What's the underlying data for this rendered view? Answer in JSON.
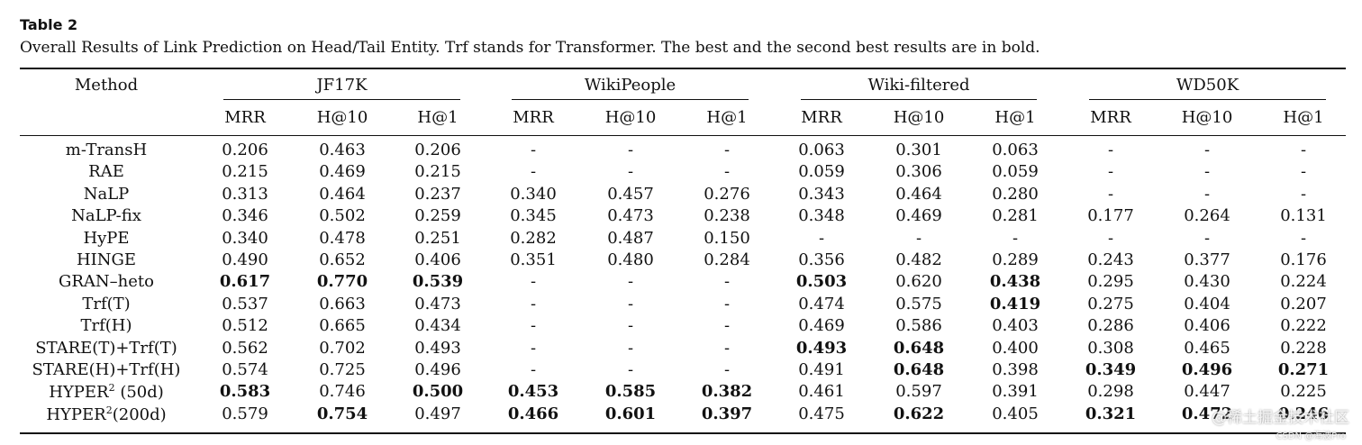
{
  "caption": {
    "label": "Table 2",
    "text": "Overall Results of Link Prediction on Head/Tail Entity. Trf stands for Transformer. The best and the second best results are in bold."
  },
  "table": {
    "method_header": "Method",
    "groups": [
      "JF17K",
      "WikiPeople",
      "Wiki-filtered",
      "WD50K"
    ],
    "metrics": [
      "MRR",
      "H@10",
      "H@1"
    ],
    "rows": [
      {
        "method": "m-TransH",
        "cells": [
          [
            "0.206",
            0
          ],
          [
            "0.463",
            0
          ],
          [
            "0.206",
            0
          ],
          [
            "-",
            0
          ],
          [
            "-",
            0
          ],
          [
            "-",
            0
          ],
          [
            "0.063",
            0
          ],
          [
            "0.301",
            0
          ],
          [
            "0.063",
            0
          ],
          [
            "-",
            0
          ],
          [
            "-",
            0
          ],
          [
            "-",
            0
          ]
        ]
      },
      {
        "method": "RAE",
        "cells": [
          [
            "0.215",
            0
          ],
          [
            "0.469",
            0
          ],
          [
            "0.215",
            0
          ],
          [
            "-",
            0
          ],
          [
            "-",
            0
          ],
          [
            "-",
            0
          ],
          [
            "0.059",
            0
          ],
          [
            "0.306",
            0
          ],
          [
            "0.059",
            0
          ],
          [
            "-",
            0
          ],
          [
            "-",
            0
          ],
          [
            "-",
            0
          ]
        ]
      },
      {
        "method": "NaLP",
        "cells": [
          [
            "0.313",
            0
          ],
          [
            "0.464",
            0
          ],
          [
            "0.237",
            0
          ],
          [
            "0.340",
            0
          ],
          [
            "0.457",
            0
          ],
          [
            "0.276",
            0
          ],
          [
            "0.343",
            0
          ],
          [
            "0.464",
            0
          ],
          [
            "0.280",
            0
          ],
          [
            "-",
            0
          ],
          [
            "-",
            0
          ],
          [
            "-",
            0
          ]
        ]
      },
      {
        "method": "NaLP-fix",
        "cells": [
          [
            "0.346",
            0
          ],
          [
            "0.502",
            0
          ],
          [
            "0.259",
            0
          ],
          [
            "0.345",
            0
          ],
          [
            "0.473",
            0
          ],
          [
            "0.238",
            0
          ],
          [
            "0.348",
            0
          ],
          [
            "0.469",
            0
          ],
          [
            "0.281",
            0
          ],
          [
            "0.177",
            0
          ],
          [
            "0.264",
            0
          ],
          [
            "0.131",
            0
          ]
        ]
      },
      {
        "method": "HyPE",
        "cells": [
          [
            "0.340",
            0
          ],
          [
            "0.478",
            0
          ],
          [
            "0.251",
            0
          ],
          [
            "0.282",
            0
          ],
          [
            "0.487",
            0
          ],
          [
            "0.150",
            0
          ],
          [
            "-",
            0
          ],
          [
            "-",
            0
          ],
          [
            "-",
            0
          ],
          [
            "-",
            0
          ],
          [
            "-",
            0
          ],
          [
            "-",
            0
          ]
        ]
      },
      {
        "method": "HINGE",
        "cells": [
          [
            "0.490",
            0
          ],
          [
            "0.652",
            0
          ],
          [
            "0.406",
            0
          ],
          [
            "0.351",
            0
          ],
          [
            "0.480",
            0
          ],
          [
            "0.284",
            0
          ],
          [
            "0.356",
            0
          ],
          [
            "0.482",
            0
          ],
          [
            "0.289",
            0
          ],
          [
            "0.243",
            0
          ],
          [
            "0.377",
            0
          ],
          [
            "0.176",
            0
          ]
        ]
      },
      {
        "method": "GRAN–heto",
        "cells": [
          [
            "0.617",
            1
          ],
          [
            "0.770",
            1
          ],
          [
            "0.539",
            1
          ],
          [
            "-",
            0
          ],
          [
            "-",
            0
          ],
          [
            "-",
            0
          ],
          [
            "0.503",
            1
          ],
          [
            "0.620",
            0
          ],
          [
            "0.438",
            1
          ],
          [
            "0.295",
            0
          ],
          [
            "0.430",
            0
          ],
          [
            "0.224",
            0
          ]
        ]
      },
      {
        "method": "Trf(T)",
        "cells": [
          [
            "0.537",
            0
          ],
          [
            "0.663",
            0
          ],
          [
            "0.473",
            0
          ],
          [
            "-",
            0
          ],
          [
            "-",
            0
          ],
          [
            "-",
            0
          ],
          [
            "0.474",
            0
          ],
          [
            "0.575",
            0
          ],
          [
            "0.419",
            1
          ],
          [
            "0.275",
            0
          ],
          [
            "0.404",
            0
          ],
          [
            "0.207",
            0
          ]
        ]
      },
      {
        "method": "Trf(H)",
        "cells": [
          [
            "0.512",
            0
          ],
          [
            "0.665",
            0
          ],
          [
            "0.434",
            0
          ],
          [
            "-",
            0
          ],
          [
            "-",
            0
          ],
          [
            "-",
            0
          ],
          [
            "0.469",
            0
          ],
          [
            "0.586",
            0
          ],
          [
            "0.403",
            0
          ],
          [
            "0.286",
            0
          ],
          [
            "0.406",
            0
          ],
          [
            "0.222",
            0
          ]
        ]
      },
      {
        "method": "STARE(T)+Trf(T)",
        "cells": [
          [
            "0.562",
            0
          ],
          [
            "0.702",
            0
          ],
          [
            "0.493",
            0
          ],
          [
            "-",
            0
          ],
          [
            "-",
            0
          ],
          [
            "-",
            0
          ],
          [
            "0.493",
            1
          ],
          [
            "0.648",
            1
          ],
          [
            "0.400",
            0
          ],
          [
            "0.308",
            0
          ],
          [
            "0.465",
            0
          ],
          [
            "0.228",
            0
          ]
        ]
      },
      {
        "method": "STARE(H)+Trf(H)",
        "cells": [
          [
            "0.574",
            0
          ],
          [
            "0.725",
            0
          ],
          [
            "0.496",
            0
          ],
          [
            "-",
            0
          ],
          [
            "-",
            0
          ],
          [
            "-",
            0
          ],
          [
            "0.491",
            0
          ],
          [
            "0.648",
            1
          ],
          [
            "0.398",
            0
          ],
          [
            "0.349",
            1
          ],
          [
            "0.496",
            1
          ],
          [
            "0.271",
            1
          ]
        ]
      },
      {
        "method": "HYPER",
        "sup": "2",
        "suffix": " (50d)",
        "cells": [
          [
            "0.583",
            1
          ],
          [
            "0.746",
            0
          ],
          [
            "0.500",
            1
          ],
          [
            "0.453",
            1
          ],
          [
            "0.585",
            1
          ],
          [
            "0.382",
            1
          ],
          [
            "0.461",
            0
          ],
          [
            "0.597",
            0
          ],
          [
            "0.391",
            0
          ],
          [
            "0.298",
            0
          ],
          [
            "0.447",
            0
          ],
          [
            "0.225",
            0
          ]
        ]
      },
      {
        "method": "HYPER",
        "sup": "2",
        "suffix": "(200d)",
        "cells": [
          [
            "0.579",
            0
          ],
          [
            "0.754",
            1
          ],
          [
            "0.497",
            0
          ],
          [
            "0.466",
            1
          ],
          [
            "0.601",
            1
          ],
          [
            "0.397",
            1
          ],
          [
            "0.475",
            0
          ],
          [
            "0.622",
            1
          ],
          [
            "0.405",
            0
          ],
          [
            "0.321",
            1
          ],
          [
            "0.472",
            1
          ],
          [
            "0.246",
            1
          ]
        ]
      }
    ]
  },
  "watermark": {
    "line1": "@稀土掘金技术社区",
    "line2": "CSDN @海波Pro"
  }
}
